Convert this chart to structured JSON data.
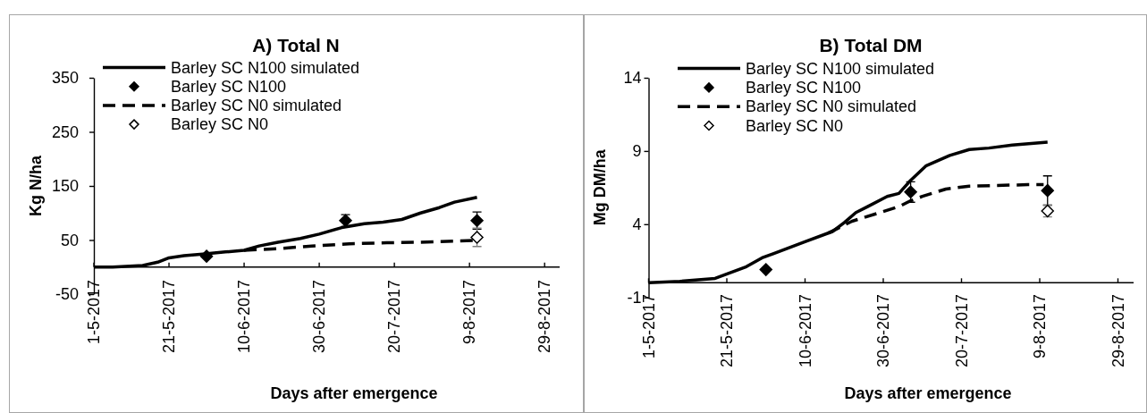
{
  "chart_data": [
    {
      "type": "line",
      "title": "A) Total N",
      "xlabel": "Days after emergence",
      "ylabel": "Kg N/ha",
      "legend": "top left",
      "xlim": [
        "2017-05-01",
        "2017-09-02"
      ],
      "xticks": [
        {
          "value": "2017-05-01",
          "label": "1-5-2017"
        },
        {
          "value": "2017-05-21",
          "label": "21-5-2017"
        },
        {
          "value": "2017-06-10",
          "label": "10-6-2017"
        },
        {
          "value": "2017-06-30",
          "label": "30-6-2017"
        },
        {
          "value": "2017-07-20",
          "label": "20-7-2017"
        },
        {
          "value": "2017-08-09",
          "label": "9-8-2017"
        },
        {
          "value": "2017-08-29",
          "label": "29-8-2017"
        }
      ],
      "ylim": [
        -50,
        350
      ],
      "yticks": [
        -50,
        50,
        150,
        250,
        350
      ],
      "series": [
        {
          "name": "Barley SC N100 simulated",
          "type": "line",
          "color": "#000000",
          "line_style": "solid",
          "x": [
            "2017-05-01",
            "2017-05-06",
            "2017-05-14",
            "2017-05-18",
            "2017-05-21",
            "2017-05-25",
            "2017-05-30",
            "2017-06-05",
            "2017-06-10",
            "2017-06-14",
            "2017-06-19",
            "2017-06-25",
            "2017-06-30",
            "2017-07-06",
            "2017-07-12",
            "2017-07-17",
            "2017-07-22",
            "2017-07-27",
            "2017-08-01",
            "2017-08-05",
            "2017-08-11"
          ],
          "values": [
            0,
            0,
            3,
            9,
            17,
            21,
            24,
            28,
            31,
            39,
            46,
            53,
            61,
            73,
            80,
            83,
            88,
            100,
            110,
            120,
            129
          ]
        },
        {
          "name": "Barley SC N100",
          "type": "scatter",
          "color": "#000000",
          "marker": "diamond",
          "x": [
            "2017-05-31",
            "2017-07-07",
            "2017-08-11"
          ],
          "values": [
            20,
            86,
            86
          ],
          "errors": [
            null,
            11,
            16
          ]
        },
        {
          "name": "Barley SC N0 simulated",
          "type": "line",
          "color": "#000000",
          "line_style": "dashed",
          "x": [
            "2017-06-10",
            "2017-06-19",
            "2017-06-28",
            "2017-07-08",
            "2017-07-18",
            "2017-07-27",
            "2017-08-10"
          ],
          "values": [
            31,
            34,
            39,
            43,
            45,
            46,
            49
          ]
        },
        {
          "name": "Barley SC N0",
          "type": "scatter",
          "color": "#ffffff",
          "marker": "diamond",
          "x": [
            "2017-08-11"
          ],
          "values": [
            55
          ],
          "errors": [
            17
          ]
        }
      ]
    },
    {
      "type": "line",
      "title": "B) Total DM",
      "xlabel": "Days after emergence",
      "ylabel": "Mg DM/ha",
      "legend": "top left",
      "xlim": [
        "2017-05-01",
        "2017-09-02"
      ],
      "xticks": [
        {
          "value": "2017-05-01",
          "label": "1-5-2017"
        },
        {
          "value": "2017-05-21",
          "label": "21-5-2017"
        },
        {
          "value": "2017-06-10",
          "label": "10-6-2017"
        },
        {
          "value": "2017-06-30",
          "label": "30-6-2017"
        },
        {
          "value": "2017-07-20",
          "label": "20-7-2017"
        },
        {
          "value": "2017-08-09",
          "label": "9-8-2017"
        },
        {
          "value": "2017-08-29",
          "label": "29-8-2017"
        }
      ],
      "ylim": [
        -1,
        14
      ],
      "yticks": [
        -1,
        4,
        9,
        14
      ],
      "series": [
        {
          "name": "Barley SC N100 simulated",
          "type": "line",
          "color": "#000000",
          "line_style": "solid",
          "x": [
            "2017-05-01",
            "2017-05-09",
            "2017-05-18",
            "2017-05-22",
            "2017-05-26",
            "2017-05-30",
            "2017-06-02",
            "2017-06-10",
            "2017-06-17",
            "2017-06-20",
            "2017-06-23",
            "2017-06-26",
            "2017-07-01",
            "2017-07-04",
            "2017-07-07",
            "2017-07-11",
            "2017-07-17",
            "2017-07-22",
            "2017-07-27",
            "2017-08-02",
            "2017-08-11"
          ],
          "values": [
            0,
            0.1,
            0.3,
            0.7,
            1.1,
            1.7,
            2.0,
            2.8,
            3.5,
            4.1,
            4.8,
            5.2,
            5.9,
            6.1,
            7.0,
            8.0,
            8.7,
            9.1,
            9.2,
            9.4,
            9.6
          ]
        },
        {
          "name": "Barley SC N100",
          "type": "scatter",
          "color": "#000000",
          "marker": "diamond",
          "x": [
            "2017-05-31",
            "2017-07-07",
            "2017-08-11"
          ],
          "values": [
            0.9,
            6.2,
            6.3
          ],
          "errors": [
            null,
            0.7,
            1.0
          ]
        },
        {
          "name": "Barley SC N0 simulated",
          "type": "line",
          "color": "#000000",
          "line_style": "dashed",
          "x": [
            "2017-06-16",
            "2017-06-22",
            "2017-07-04",
            "2017-07-07",
            "2017-07-10",
            "2017-07-16",
            "2017-07-22",
            "2017-08-06",
            "2017-08-10"
          ],
          "values": [
            3.4,
            4.2,
            5.2,
            5.6,
            5.9,
            6.4,
            6.6,
            6.7,
            6.7
          ]
        },
        {
          "name": "Barley SC N0",
          "type": "scatter",
          "color": "#ffffff",
          "marker": "diamond",
          "x": [
            "2017-08-11"
          ],
          "values": [
            4.9
          ],
          "errors": [
            0.4
          ]
        }
      ]
    }
  ]
}
